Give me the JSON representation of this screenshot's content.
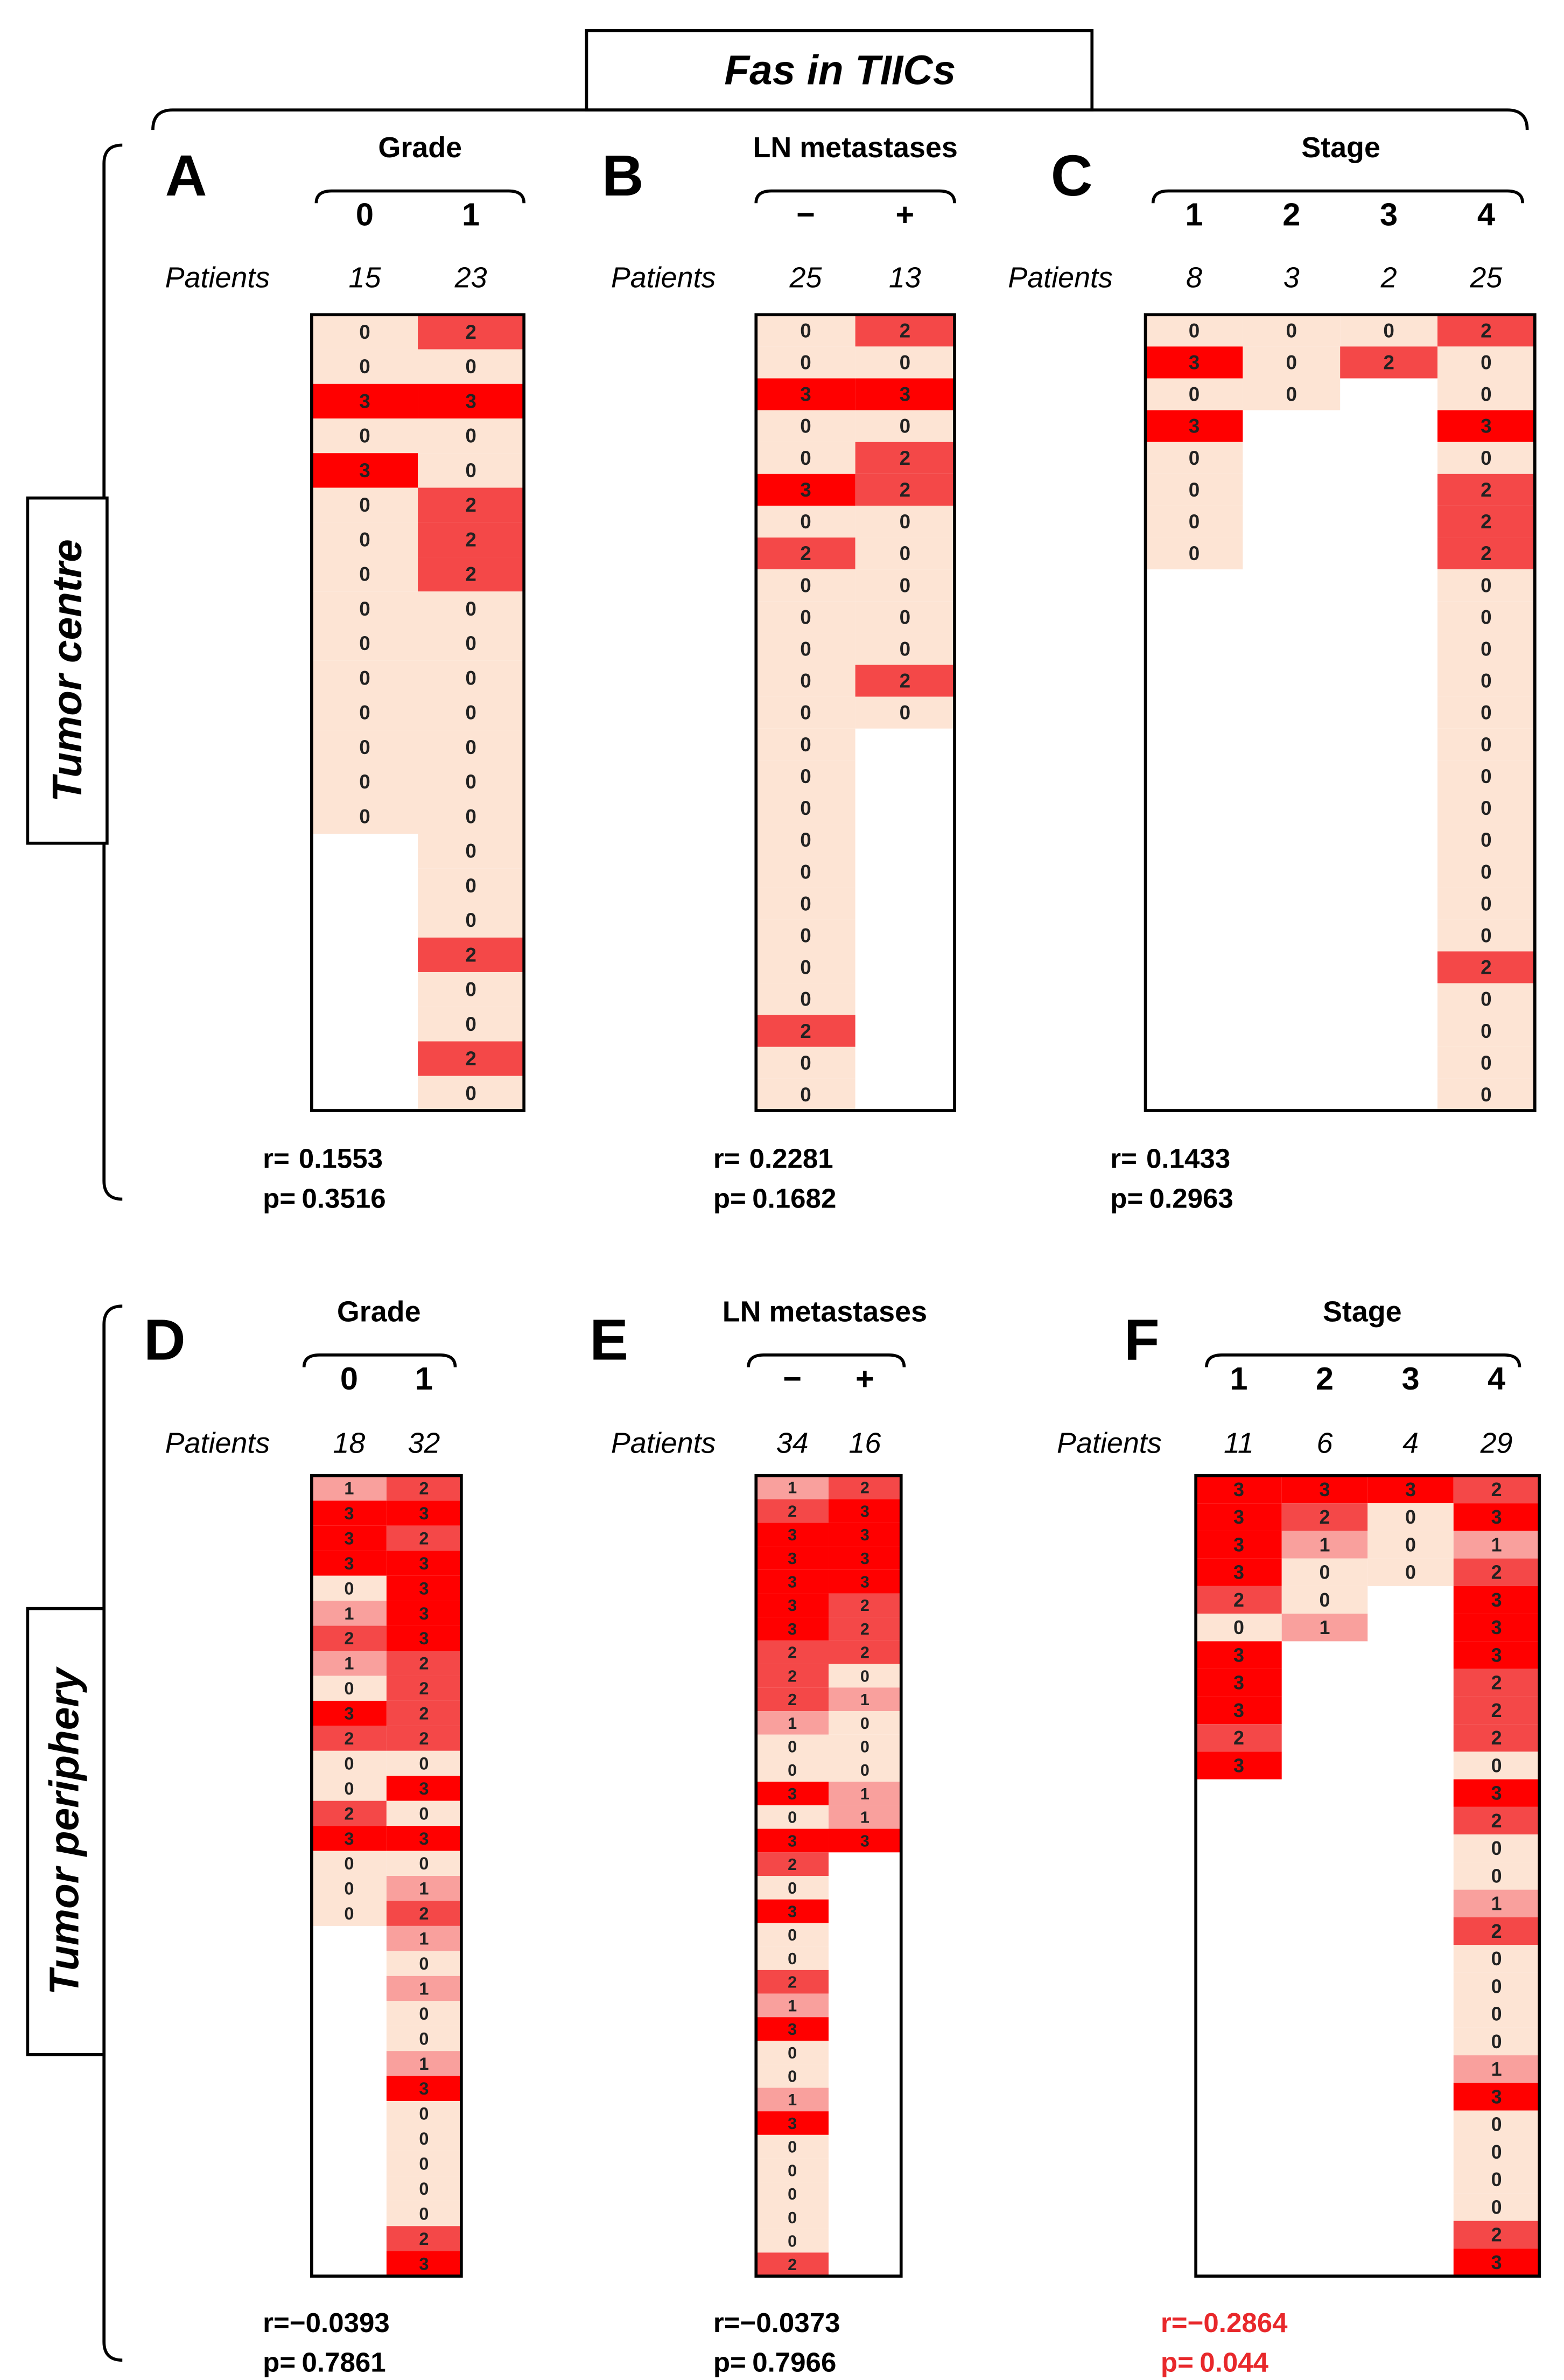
{
  "header": {
    "title": "Fas in TIICs"
  },
  "row_labels": [
    "Tumor centre",
    "Tumor periphery"
  ],
  "cell_colors": [
    "#fde4d4",
    "#f9a09d",
    "#f44848",
    "#ff0000"
  ],
  "chart_data": [
    {
      "type": "heatmap",
      "panel": "A",
      "title": "Grade",
      "categories": [
        "0",
        "1"
      ],
      "patients_label": "Patients",
      "patients": [
        15,
        23
      ],
      "columns": [
        [
          0,
          0,
          3,
          0,
          3,
          0,
          0,
          0,
          0,
          0,
          0,
          0,
          0,
          0,
          0
        ],
        [
          2,
          0,
          3,
          0,
          0,
          2,
          2,
          2,
          0,
          0,
          0,
          0,
          0,
          0,
          0,
          0,
          0,
          0,
          2,
          0,
          0,
          2,
          0
        ]
      ],
      "r_label": "r=",
      "r": {
        "value": 0.1553,
        "label": "0.1553"
      },
      "p_label": "p=",
      "p": 0.3516
    },
    {
      "type": "heatmap",
      "panel": "B",
      "title": "LN metastases",
      "categories": [
        "−",
        "+"
      ],
      "patients_label": "Patients",
      "patients": [
        25,
        13
      ],
      "columns": [
        [
          0,
          0,
          3,
          0,
          0,
          3,
          0,
          2,
          0,
          0,
          0,
          0,
          0,
          0,
          0,
          0,
          0,
          0,
          0,
          0,
          0,
          0,
          2,
          0,
          0
        ],
        [
          2,
          0,
          3,
          0,
          2,
          2,
          0,
          0,
          0,
          0,
          0,
          2,
          0
        ]
      ],
      "r_label": "r=",
      "r": {
        "value": 0.2281,
        "label": "0.2281"
      },
      "p_label": "p=",
      "p": 0.1682
    },
    {
      "type": "heatmap",
      "panel": "C",
      "title": "Stage",
      "categories": [
        "1",
        "2",
        "3",
        "4"
      ],
      "patients_label": "Patients",
      "patients": [
        8,
        3,
        2,
        25
      ],
      "columns": [
        [
          0,
          3,
          0,
          3,
          0,
          0,
          0,
          0
        ],
        [
          0,
          0,
          0
        ],
        [
          0,
          2
        ],
        [
          2,
          0,
          0,
          3,
          0,
          2,
          2,
          2,
          0,
          0,
          0,
          0,
          0,
          0,
          0,
          0,
          0,
          0,
          0,
          0,
          2,
          0,
          0,
          0,
          0
        ]
      ],
      "r_label": "r=",
      "r": {
        "value": 0.1433,
        "label": "0.1433"
      },
      "p_label": "p=",
      "p": 0.2963
    },
    {
      "type": "heatmap",
      "panel": "D",
      "title": "Grade",
      "categories": [
        "0",
        "1"
      ],
      "patients_label": "Patients",
      "patients": [
        18,
        32
      ],
      "columns": [
        [
          1,
          3,
          3,
          3,
          0,
          1,
          2,
          1,
          0,
          3,
          2,
          0,
          0,
          2,
          3,
          0,
          0,
          0
        ],
        [
          2,
          3,
          2,
          3,
          3,
          3,
          3,
          2,
          2,
          2,
          2,
          0,
          3,
          0,
          3,
          0,
          1,
          2,
          1,
          0,
          1,
          0,
          0,
          1,
          3,
          0,
          0,
          0,
          0,
          0,
          2,
          3
        ]
      ],
      "r_label": "r=",
      "r": {
        "value": -0.0393,
        "label": "−0.0393"
      },
      "p_label": "p=",
      "p": 0.7861
    },
    {
      "type": "heatmap",
      "panel": "E",
      "title": "LN metastases",
      "categories": [
        "−",
        "+"
      ],
      "patients_label": "Patients",
      "patients": [
        34,
        16
      ],
      "columns": [
        [
          1,
          2,
          3,
          3,
          3,
          3,
          3,
          2,
          2,
          2,
          1,
          0,
          0,
          3,
          0,
          3,
          2,
          0,
          3,
          0,
          0,
          2,
          1,
          3,
          0,
          0,
          1,
          3,
          0,
          0,
          0,
          0,
          0,
          2
        ],
        [
          2,
          3,
          3,
          3,
          3,
          2,
          2,
          2,
          0,
          1,
          0,
          0,
          0,
          1,
          1,
          3
        ]
      ],
      "r_label": "r=",
      "r": {
        "value": -0.0373,
        "label": "−0.0373"
      },
      "p_label": "p=",
      "p": 0.7966
    },
    {
      "type": "heatmap",
      "panel": "F",
      "title": "Stage",
      "categories": [
        "1",
        "2",
        "3",
        "4"
      ],
      "patients_label": "Patients",
      "patients": [
        11,
        6,
        4,
        29
      ],
      "columns": [
        [
          3,
          3,
          3,
          3,
          2,
          0,
          3,
          3,
          3,
          2,
          3
        ],
        [
          3,
          2,
          1,
          0,
          0,
          1
        ],
        [
          3,
          0,
          0,
          0
        ],
        [
          2,
          3,
          1,
          2,
          3,
          3,
          3,
          2,
          2,
          2,
          0,
          3,
          2,
          0,
          0,
          1,
          2,
          0,
          0,
          0,
          0,
          1,
          3,
          0,
          0,
          0,
          0,
          2,
          3
        ]
      ],
      "r_label": "r=",
      "r": {
        "value": -0.2864,
        "label": "−0.2864"
      },
      "p_label": "p=",
      "p": 0.044,
      "stats_color": "#e8282b"
    }
  ]
}
